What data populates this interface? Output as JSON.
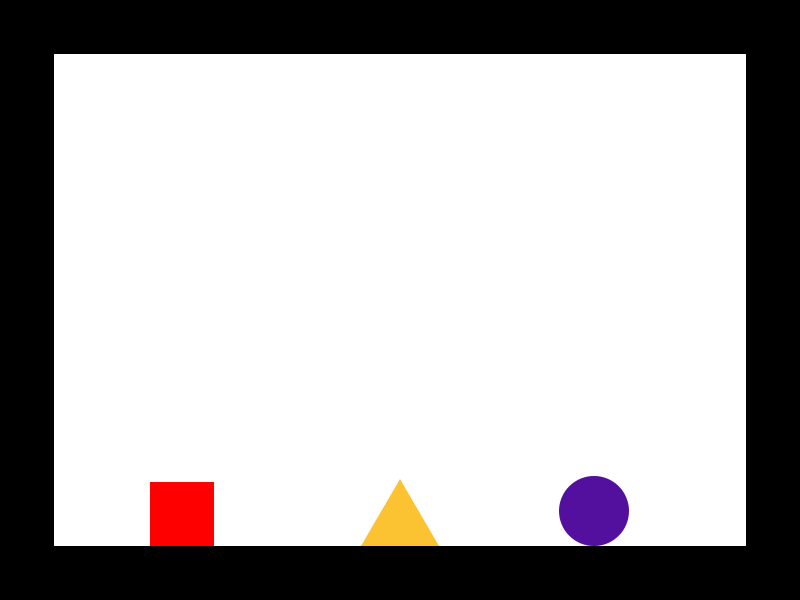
{
  "shapes": {
    "square": {
      "color": "#ff0000"
    },
    "triangle": {
      "color": "#fbc232"
    },
    "circle": {
      "color": "#530f9e"
    }
  }
}
